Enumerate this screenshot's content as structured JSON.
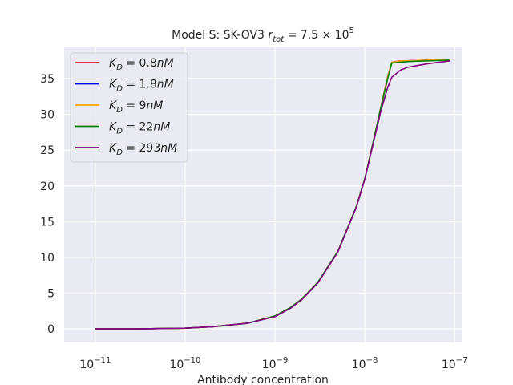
{
  "chart_data": {
    "type": "line",
    "title_prefix": "Model S: SK-OV3 ",
    "title_math": {
      "var": "r",
      "sub": "tot",
      "eq": " = 7.5 × 10",
      "exp": "5"
    },
    "xlabel": "Antibody concentration",
    "ylabel": "",
    "x_scale": "log",
    "xlim": [
      4.5e-12,
      1.2e-07
    ],
    "ylim": [
      -1.9,
      39.5
    ],
    "grid": true,
    "legend_position": "upper-left",
    "x_ticks": [
      {
        "value": 1e-11,
        "base": "10",
        "exp": "−11"
      },
      {
        "value": 1e-10,
        "base": "10",
        "exp": "−10"
      },
      {
        "value": 1e-09,
        "base": "10",
        "exp": "−9"
      },
      {
        "value": 1e-08,
        "base": "10",
        "exp": "−8"
      },
      {
        "value": 1e-07,
        "base": "10",
        "exp": "−7"
      }
    ],
    "y_ticks": [
      0,
      5,
      10,
      15,
      20,
      25,
      30,
      35
    ],
    "y_tick_labels": [
      "0",
      "5",
      "10",
      "15",
      "20",
      "25",
      "30",
      "35"
    ],
    "x": [
      1e-11,
      3e-11,
      1e-10,
      2e-10,
      5e-10,
      1e-09,
      1.5e-09,
      2e-09,
      3e-09,
      5e-09,
      8e-09,
      1e-08,
      1.2e-08,
      1.5e-08,
      1.8e-08,
      2e-08,
      2.5e-08,
      3e-08,
      5e-08,
      9e-08
    ],
    "series": [
      {
        "name": "0.8",
        "color": "#e41a1c",
        "values": [
          0,
          0,
          0.1,
          0.3,
          0.8,
          1.8,
          3.0,
          4.2,
          6.5,
          10.8,
          17.0,
          21.0,
          25.3,
          30.8,
          35.3,
          37.3,
          37.5,
          37.5,
          37.6,
          37.7
        ]
      },
      {
        "name": "1.8",
        "color": "#0000ff",
        "values": [
          0,
          0,
          0.1,
          0.3,
          0.8,
          1.8,
          3.0,
          4.2,
          6.5,
          10.8,
          17.0,
          21.0,
          25.3,
          30.8,
          35.3,
          37.3,
          37.5,
          37.5,
          37.6,
          37.7
        ]
      },
      {
        "name": "9",
        "color": "#ffa500",
        "values": [
          0,
          0,
          0.1,
          0.3,
          0.8,
          1.8,
          3.0,
          4.2,
          6.5,
          10.8,
          17.0,
          21.0,
          25.3,
          30.8,
          35.3,
          37.3,
          37.5,
          37.5,
          37.6,
          37.7
        ]
      },
      {
        "name": "22",
        "color": "#008000",
        "values": [
          0,
          0,
          0.1,
          0.3,
          0.8,
          1.8,
          3.0,
          4.2,
          6.5,
          10.8,
          17.0,
          21.0,
          25.3,
          30.8,
          35.0,
          37.2,
          37.3,
          37.4,
          37.5,
          37.6
        ]
      },
      {
        "name": "293",
        "color": "#800080",
        "values": [
          0,
          0,
          0.1,
          0.3,
          0.8,
          1.7,
          2.9,
          4.1,
          6.4,
          10.7,
          16.9,
          20.9,
          25.1,
          30.3,
          33.8,
          35.2,
          36.2,
          36.6,
          37.1,
          37.5
        ]
      }
    ],
    "legend_label_sub": "D",
    "legend_label_var": "K",
    "legend_label_unit": "nM",
    "colors": {
      "background": "#eaeaf2",
      "grid": "#ffffff",
      "text": "#262626"
    }
  }
}
